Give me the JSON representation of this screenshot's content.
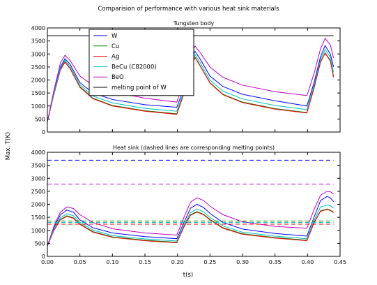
{
  "figure": {
    "suptitle": "Comparision of performance with various heat sink materials",
    "ylabel": "Max. T(K)",
    "xlabel": "t(s)"
  },
  "chart_data": [
    {
      "type": "line",
      "title": "Tungsten body",
      "xlim": [
        0.0,
        0.45
      ],
      "ylim": [
        0,
        4000
      ],
      "xticks": [
        "0.00",
        "0.05",
        "0.10",
        "0.15",
        "0.20",
        "0.25",
        "0.30",
        "0.35",
        "0.40",
        "0.45"
      ],
      "yticks": [
        "0",
        "500",
        "1000",
        "1500",
        "2000",
        "2500",
        "3000",
        "3500",
        "4000"
      ],
      "show_xticklabels": false,
      "grid": false,
      "legend": "upper-left",
      "series": [
        {
          "name": "W",
          "color": "#0000ff",
          "style": "solid",
          "x": [
            0.0,
            0.01,
            0.02,
            0.027,
            0.035,
            0.05,
            0.07,
            0.1,
            0.15,
            0.199,
            0.21,
            0.22,
            0.227,
            0.235,
            0.25,
            0.27,
            0.3,
            0.35,
            0.399,
            0.41,
            0.42,
            0.427,
            0.435,
            0.44
          ],
          "y": [
            400,
            1500,
            2500,
            2820,
            2600,
            1900,
            1500,
            1250,
            1050,
            950,
            1700,
            2700,
            3100,
            2800,
            2150,
            1750,
            1450,
            1200,
            1000,
            1900,
            2900,
            3320,
            3000,
            2500
          ]
        },
        {
          "name": "Cu",
          "color": "#008000",
          "style": "solid",
          "x": [
            0.0,
            0.01,
            0.02,
            0.027,
            0.035,
            0.05,
            0.07,
            0.1,
            0.15,
            0.199,
            0.21,
            0.22,
            0.227,
            0.235,
            0.25,
            0.27,
            0.3,
            0.35,
            0.399,
            0.41,
            0.42,
            0.427,
            0.435,
            0.44
          ],
          "y": [
            400,
            1450,
            2400,
            2700,
            2450,
            1750,
            1300,
            1020,
            820,
            700,
            1500,
            2500,
            2880,
            2550,
            1900,
            1450,
            1150,
            900,
            750,
            1700,
            2700,
            3050,
            2750,
            2150
          ]
        },
        {
          "name": "Ag",
          "color": "#ff0000",
          "style": "solid",
          "x": [
            0.0,
            0.01,
            0.02,
            0.027,
            0.035,
            0.05,
            0.07,
            0.1,
            0.15,
            0.199,
            0.21,
            0.22,
            0.227,
            0.235,
            0.25,
            0.27,
            0.3,
            0.35,
            0.399,
            0.41,
            0.42,
            0.427,
            0.435,
            0.44
          ],
          "y": [
            400,
            1440,
            2380,
            2680,
            2430,
            1720,
            1280,
            1000,
            800,
            680,
            1480,
            2480,
            2860,
            2530,
            1880,
            1430,
            1130,
            880,
            730,
            1680,
            2680,
            3030,
            2730,
            2100
          ]
        },
        {
          "name": "BeCu (C82000)",
          "color": "#00bfbf",
          "style": "solid",
          "x": [
            0.0,
            0.01,
            0.02,
            0.027,
            0.035,
            0.05,
            0.07,
            0.1,
            0.15,
            0.199,
            0.21,
            0.22,
            0.227,
            0.235,
            0.25,
            0.27,
            0.3,
            0.35,
            0.399,
            0.41,
            0.42,
            0.427,
            0.435,
            0.44
          ],
          "y": [
            400,
            1470,
            2440,
            2760,
            2520,
            1820,
            1380,
            1120,
            910,
            800,
            1580,
            2580,
            2980,
            2660,
            2000,
            1570,
            1270,
            1020,
            860,
            1790,
            2790,
            3180,
            2870,
            2300
          ]
        },
        {
          "name": "BeO",
          "color": "#bf00bf",
          "style": "solid",
          "x": [
            0.0,
            0.01,
            0.02,
            0.027,
            0.035,
            0.05,
            0.07,
            0.1,
            0.15,
            0.199,
            0.21,
            0.22,
            0.227,
            0.235,
            0.25,
            0.27,
            0.3,
            0.35,
            0.399,
            0.41,
            0.42,
            0.427,
            0.435,
            0.44
          ],
          "y": [
            400,
            1600,
            2650,
            2950,
            2750,
            2150,
            1800,
            1550,
            1300,
            1150,
            2000,
            2950,
            3300,
            3050,
            2500,
            2100,
            1800,
            1550,
            1400,
            2250,
            3200,
            3600,
            3350,
            2850
          ]
        },
        {
          "name": "melting point of W",
          "color": "#000000",
          "style": "solid",
          "x": [
            0.0,
            0.44
          ],
          "y": [
            3700,
            3700
          ]
        }
      ]
    },
    {
      "type": "line",
      "title": "Heat sink (dashed lines are corresponding melting points)",
      "xlim": [
        0.0,
        0.45
      ],
      "ylim": [
        0,
        4000
      ],
      "xticks": [
        "0.00",
        "0.05",
        "0.10",
        "0.15",
        "0.20",
        "0.25",
        "0.30",
        "0.35",
        "0.40",
        "0.45"
      ],
      "yticks": [
        "0",
        "500",
        "1000",
        "1500",
        "2000",
        "2500",
        "3000",
        "3500",
        "4000"
      ],
      "show_xticklabels": true,
      "grid": false,
      "series": [
        {
          "color": "#0000ff",
          "style": "solid",
          "x": [
            0.0,
            0.01,
            0.02,
            0.03,
            0.04,
            0.05,
            0.07,
            0.1,
            0.15,
            0.199,
            0.21,
            0.22,
            0.23,
            0.24,
            0.25,
            0.27,
            0.3,
            0.35,
            0.399,
            0.41,
            0.42,
            0.43,
            0.435,
            0.44
          ],
          "y": [
            400,
            1100,
            1600,
            1780,
            1700,
            1400,
            1100,
            900,
            760,
            680,
            1300,
            1850,
            2000,
            1880,
            1650,
            1300,
            1050,
            880,
            780,
            1500,
            2150,
            2300,
            2250,
            2100
          ]
        },
        {
          "color": "#008000",
          "style": "solid",
          "x": [
            0.0,
            0.01,
            0.02,
            0.03,
            0.04,
            0.05,
            0.07,
            0.1,
            0.15,
            0.199,
            0.21,
            0.22,
            0.23,
            0.24,
            0.25,
            0.27,
            0.3,
            0.35,
            0.399,
            0.41,
            0.42,
            0.43,
            0.435,
            0.44
          ],
          "y": [
            400,
            1000,
            1420,
            1560,
            1480,
            1250,
            950,
            750,
            620,
            540,
            1150,
            1600,
            1720,
            1620,
            1420,
            1100,
            870,
            720,
            620,
            1300,
            1750,
            1820,
            1780,
            1700
          ]
        },
        {
          "color": "#ff0000",
          "style": "solid",
          "x": [
            0.0,
            0.01,
            0.02,
            0.03,
            0.04,
            0.05,
            0.07,
            0.1,
            0.15,
            0.199,
            0.21,
            0.22,
            0.23,
            0.24,
            0.25,
            0.27,
            0.3,
            0.35,
            0.399,
            0.41,
            0.42,
            0.43,
            0.435,
            0.44
          ],
          "y": [
            400,
            990,
            1400,
            1540,
            1460,
            1230,
            930,
            730,
            600,
            520,
            1130,
            1580,
            1700,
            1600,
            1400,
            1080,
            850,
            700,
            600,
            1280,
            1730,
            1800,
            1760,
            1680
          ]
        },
        {
          "color": "#00bfbf",
          "style": "solid",
          "x": [
            0.0,
            0.01,
            0.02,
            0.03,
            0.04,
            0.05,
            0.07,
            0.1,
            0.15,
            0.199,
            0.21,
            0.22,
            0.23,
            0.24,
            0.25,
            0.27,
            0.3,
            0.35,
            0.399,
            0.41,
            0.42,
            0.43,
            0.435,
            0.44
          ],
          "y": [
            400,
            1030,
            1480,
            1640,
            1560,
            1310,
            1010,
            800,
            670,
            590,
            1200,
            1680,
            1820,
            1710,
            1500,
            1170,
            930,
            780,
            680,
            1380,
            1900,
            1980,
            1940,
            1850
          ]
        },
        {
          "color": "#bf00bf",
          "style": "solid",
          "x": [
            0.0,
            0.01,
            0.02,
            0.03,
            0.04,
            0.05,
            0.07,
            0.1,
            0.15,
            0.199,
            0.21,
            0.22,
            0.23,
            0.24,
            0.25,
            0.27,
            0.3,
            0.35,
            0.399,
            0.41,
            0.42,
            0.43,
            0.435,
            0.44
          ],
          "y": [
            400,
            1150,
            1700,
            1900,
            1840,
            1600,
            1300,
            1060,
            900,
            820,
            1500,
            2080,
            2250,
            2150,
            1930,
            1600,
            1330,
            1150,
            1080,
            1800,
            2350,
            2500,
            2480,
            2400
          ]
        },
        {
          "color": "#0000ff",
          "style": "dashed",
          "x": [
            0.0,
            0.44
          ],
          "y": [
            3695,
            3695
          ]
        },
        {
          "color": "#bf00bf",
          "style": "dashed",
          "x": [
            0.0,
            0.44
          ],
          "y": [
            2780,
            2780
          ]
        },
        {
          "color": "#008000",
          "style": "dashed",
          "x": [
            0.0,
            0.44
          ],
          "y": [
            1358,
            1358
          ]
        },
        {
          "color": "#ff0000",
          "style": "dashed",
          "x": [
            0.0,
            0.44
          ],
          "y": [
            1235,
            1235
          ]
        },
        {
          "color": "#00bfbf",
          "style": "dashed",
          "x": [
            0.0,
            0.44
          ],
          "y": [
            1300,
            1300
          ]
        }
      ]
    }
  ]
}
